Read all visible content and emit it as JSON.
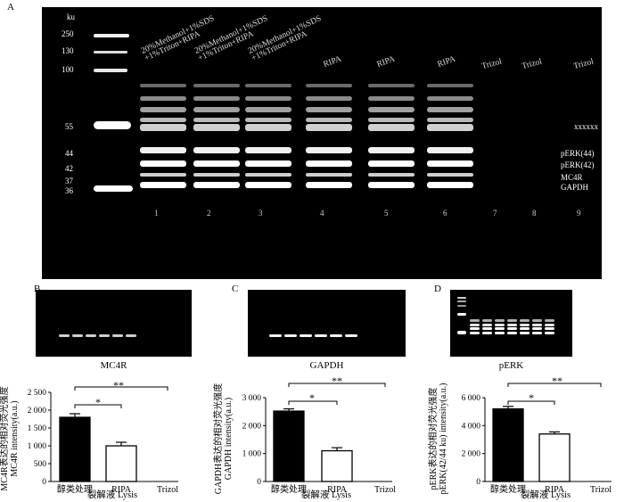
{
  "panelA": {
    "letter": "A",
    "ladder_unit": "ku",
    "ladder": [
      "250",
      "130",
      "100",
      "55",
      "44",
      "42",
      "37",
      "36"
    ],
    "lane_conditions": [
      "20%Methanol+1%SDS +1%Triton+RIPA",
      "20%Methanol+1%SDS +1%Triton+RIPA",
      "20%Methanol+1%SDS +1%Triton+RIPA",
      "RIPA",
      "RIPA",
      "RIPA",
      "Trizol",
      "Trizol",
      "Trizol"
    ],
    "lane_numbers": [
      "1",
      "2",
      "3",
      "4",
      "5",
      "6",
      "7",
      "8",
      "9"
    ],
    "band_labels": [
      "xxxxxx",
      "pERK(44)",
      "pERK(42)",
      "MC4R",
      "GAPDH"
    ]
  },
  "panelB": {
    "letter": "B",
    "blot_caption": "MC4R",
    "ylabel_cn": "MC4R表达的相对荧光强度",
    "ylabel_en": "MC4R intensity(a.u.)",
    "xlabel": "裂解液 Lysis",
    "sig1": "*",
    "sig2": "**"
  },
  "panelC": {
    "letter": "C",
    "blot_caption": "GAPDH",
    "ylabel_cn": "GAPDH表达的相对荧光强度",
    "ylabel_en": "GAPDH intensity(a.u.)",
    "xlabel": "裂解液 Lysis",
    "sig1": "*",
    "sig2": "**"
  },
  "panelD": {
    "letter": "D",
    "blot_caption": "pERK",
    "ylabel_cn": "pERK表达的相对荧光强度",
    "ylabel_en": "pERK(42/44 ku) intensity(a.u.)",
    "xlabel": "裂解液 Lysis",
    "sig1": "*",
    "sig2": "**"
  },
  "chart_data": [
    {
      "type": "bar",
      "categories": [
        "醇类处理",
        "RIPA",
        "Trizol"
      ],
      "values": [
        1800,
        1000,
        0
      ],
      "errors": [
        100,
        100,
        0
      ],
      "fills": [
        "#000000",
        "#ffffff",
        "#ffffff"
      ],
      "yticks": [
        "0",
        "500",
        "1 000",
        "1 500",
        "2 000",
        "2 500"
      ],
      "ylim": [
        0,
        2500
      ]
    },
    {
      "type": "bar",
      "categories": [
        "醇类处理",
        "RIPA",
        "Trizol"
      ],
      "values": [
        2520,
        1100,
        0
      ],
      "errors": [
        80,
        110,
        0
      ],
      "fills": [
        "#000000",
        "#ffffff",
        "#ffffff"
      ],
      "yticks": [
        "0",
        "1 000",
        "2 000",
        "3 000"
      ],
      "ylim": [
        0,
        3000
      ]
    },
    {
      "type": "bar",
      "categories": [
        "醇类处理",
        "RIPA",
        "Trizol"
      ],
      "values": [
        5200,
        3400,
        0
      ],
      "errors": [
        180,
        150,
        0
      ],
      "fills": [
        "#000000",
        "#ffffff",
        "#ffffff"
      ],
      "yticks": [
        "0",
        "2 000",
        "4 000",
        "6 000"
      ],
      "ylim": [
        0,
        6000
      ]
    }
  ]
}
